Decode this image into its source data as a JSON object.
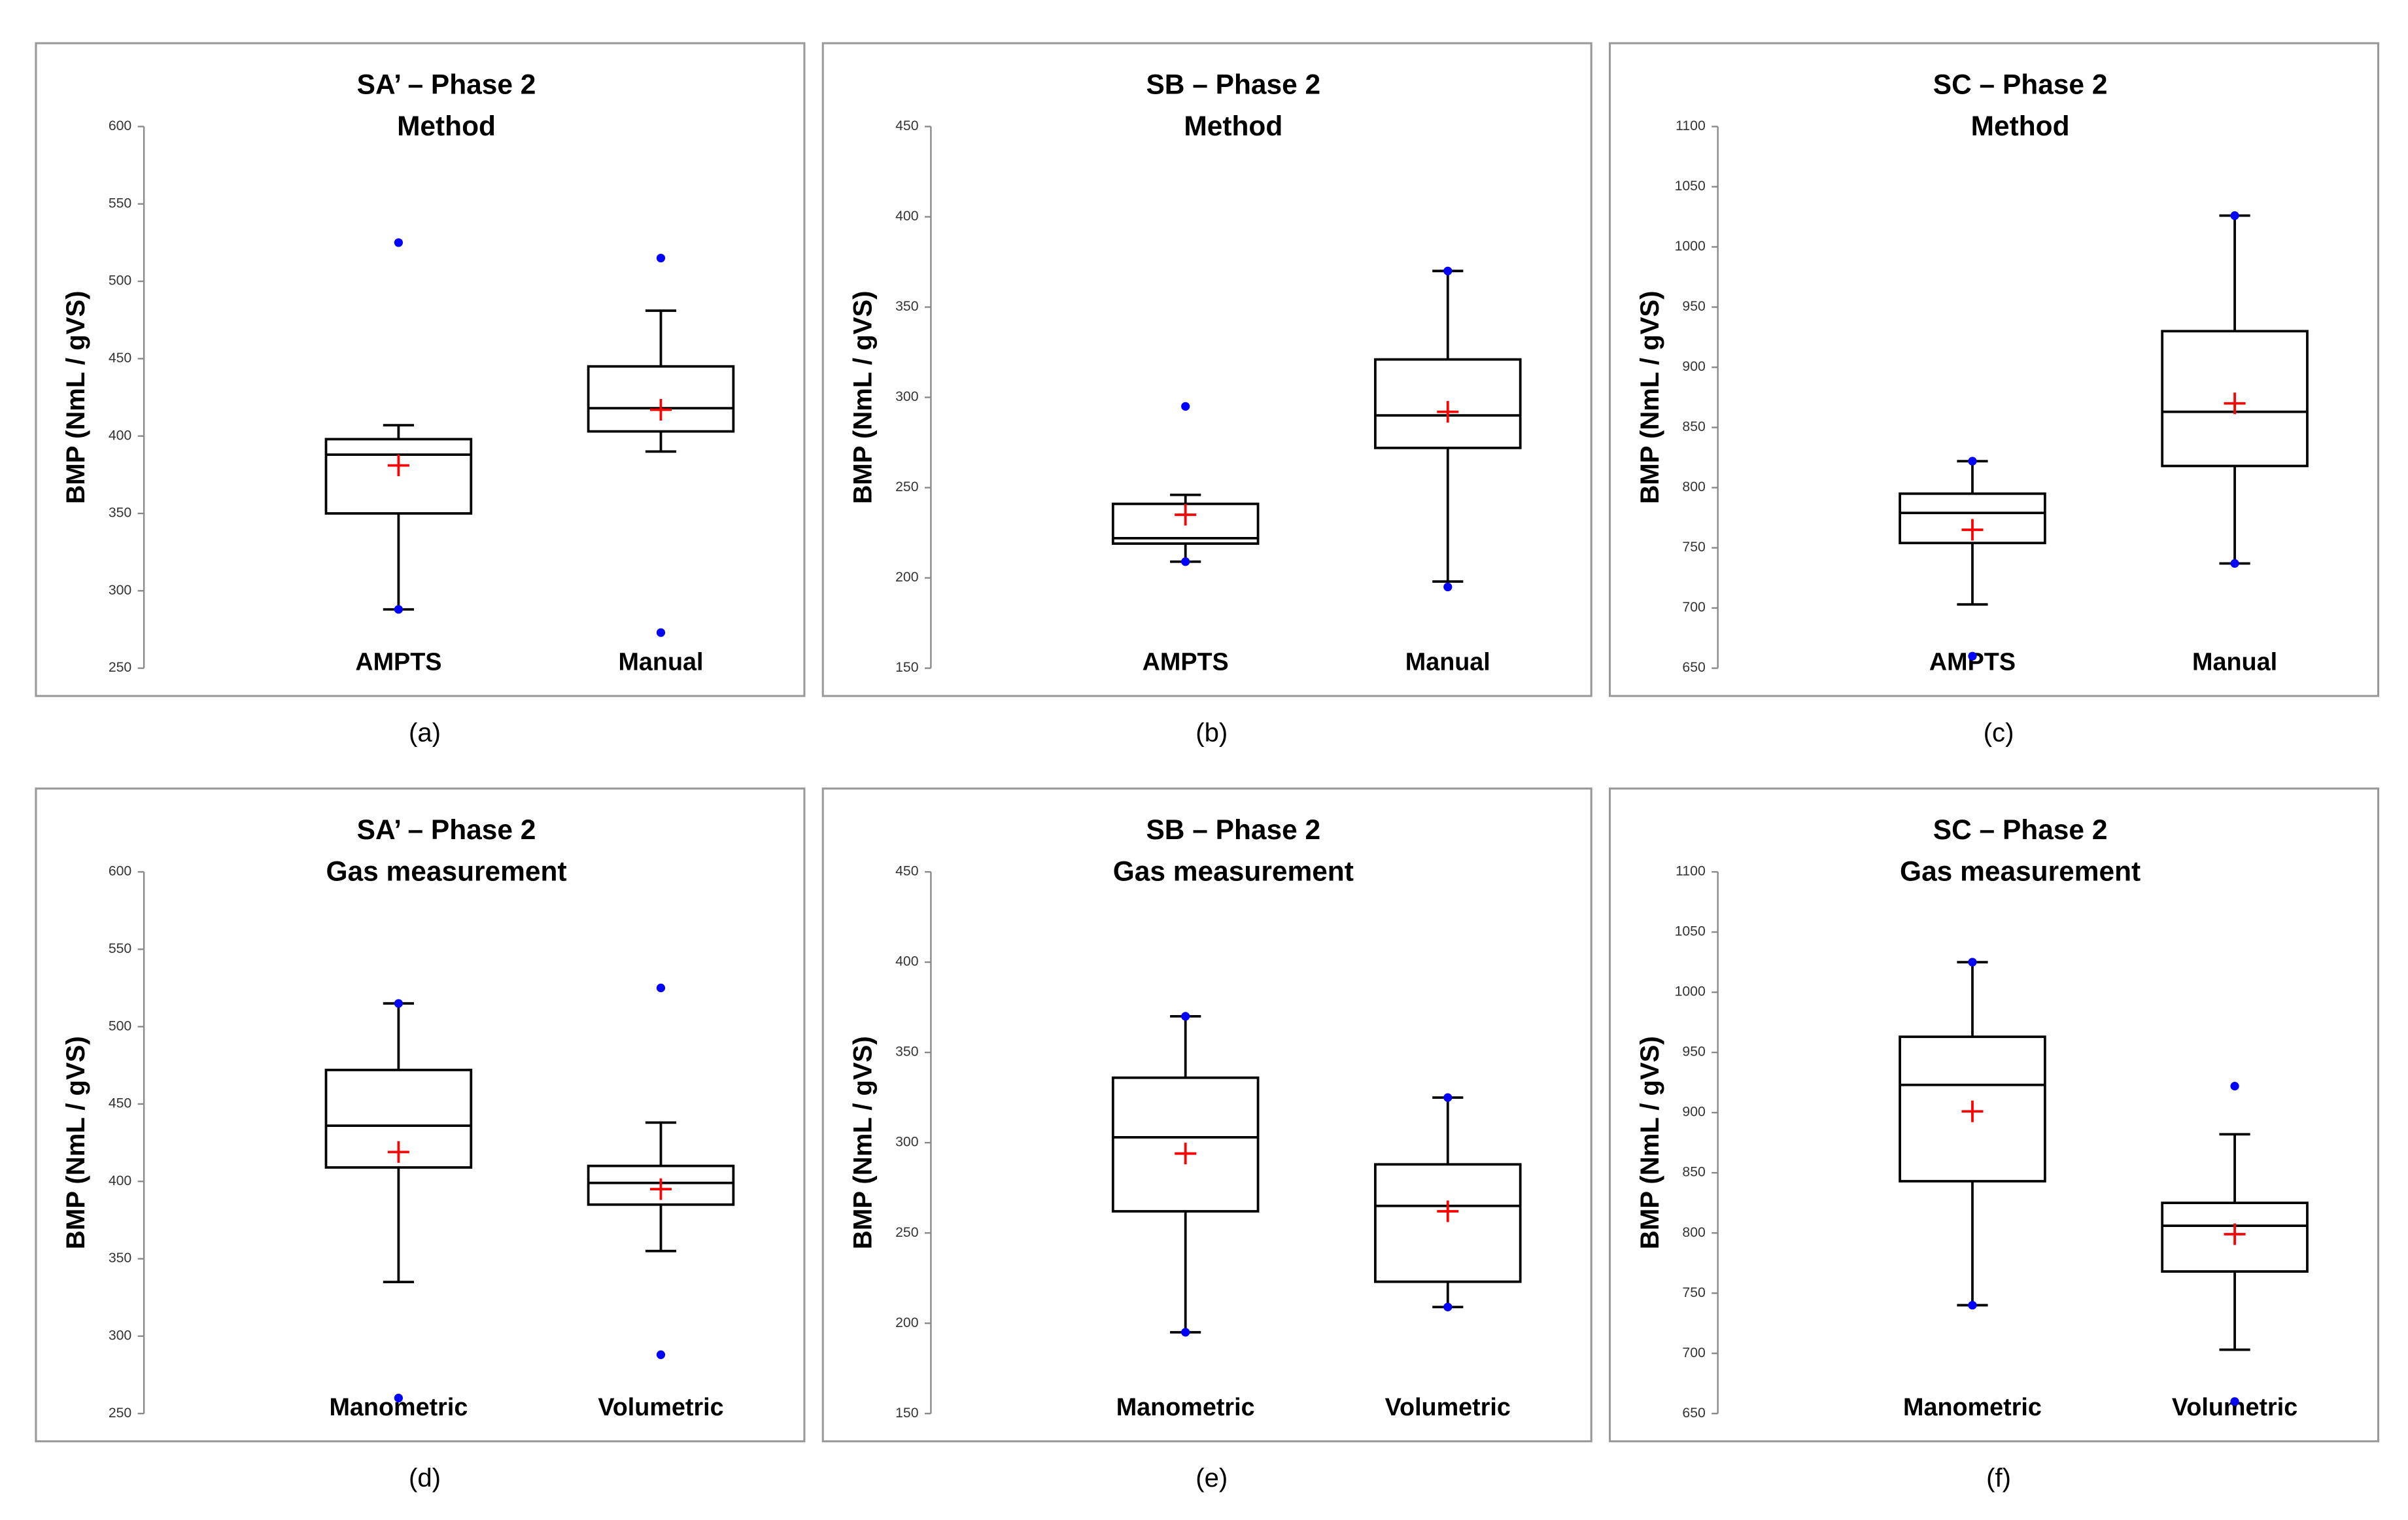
{
  "chart_data": [
    {
      "type": "box",
      "title": "SA’ – Phase 2",
      "subtitle": "Method",
      "ylabel": "BMP (NmL / gVS)",
      "caption": "(a)",
      "categories": [
        "AMPTS",
        "Manual"
      ],
      "boxes": [
        {
          "min": 288,
          "q1": 350,
          "median": 388,
          "q3": 398,
          "max": 407,
          "mean": 381,
          "outliers": [
            525,
            288
          ]
        },
        {
          "min": 390,
          "q1": 403,
          "median": 418,
          "q3": 445,
          "max": 481,
          "mean": 417,
          "outliers": [
            515,
            273
          ]
        }
      ],
      "ylim": [
        250,
        600
      ],
      "yticks": [
        250,
        300,
        350,
        400,
        450,
        500,
        550,
        600
      ],
      "box_color": "#000000",
      "outlier_color": "#0000ff",
      "mean_color": "#ff0000"
    },
    {
      "type": "box",
      "title": "SB – Phase 2",
      "subtitle": "Method",
      "ylabel": "BMP (NmL / gVS)",
      "caption": "(b)",
      "categories": [
        "AMPTS",
        "Manual"
      ],
      "boxes": [
        {
          "min": 209,
          "q1": 219,
          "median": 222,
          "q3": 241,
          "max": 246,
          "mean": 235,
          "outliers": [
            295,
            209
          ]
        },
        {
          "min": 198,
          "q1": 272,
          "median": 290,
          "q3": 321,
          "max": 370,
          "mean": 292,
          "outliers": [
            370,
            195
          ]
        }
      ],
      "ylim": [
        150,
        450
      ],
      "yticks": [
        150,
        200,
        250,
        300,
        350,
        400,
        450
      ],
      "box_color": "#000000",
      "outlier_color": "#0000ff",
      "mean_color": "#ff0000"
    },
    {
      "type": "box",
      "title": "SC – Phase 2",
      "subtitle": "Method",
      "ylabel": "BMP (NmL / gVS)",
      "caption": "(c)",
      "categories": [
        "AMPTS",
        "Manual"
      ],
      "boxes": [
        {
          "min": 703,
          "q1": 754,
          "median": 779,
          "q3": 795,
          "max": 822,
          "mean": 765,
          "outliers": [
            822,
            660
          ]
        },
        {
          "min": 737,
          "q1": 818,
          "median": 863,
          "q3": 930,
          "max": 1026,
          "mean": 870,
          "outliers": [
            1026,
            737
          ]
        }
      ],
      "ylim": [
        650,
        1100
      ],
      "yticks": [
        650,
        700,
        750,
        800,
        850,
        900,
        950,
        1000,
        1050,
        1100
      ],
      "box_color": "#000000",
      "outlier_color": "#0000ff",
      "mean_color": "#ff0000"
    },
    {
      "type": "box",
      "title": "SA’ – Phase 2",
      "subtitle": "Gas measurement",
      "ylabel": "BMP (NmL / gVS)",
      "caption": "(d)",
      "categories": [
        "Manometric",
        "Volumetric"
      ],
      "boxes": [
        {
          "min": 335,
          "q1": 409,
          "median": 436,
          "q3": 472,
          "max": 515,
          "mean": 419,
          "outliers": [
            515,
            260
          ]
        },
        {
          "min": 355,
          "q1": 385,
          "median": 399,
          "q3": 410,
          "max": 438,
          "mean": 395,
          "outliers": [
            525,
            288
          ]
        }
      ],
      "ylim": [
        250,
        600
      ],
      "yticks": [
        250,
        300,
        350,
        400,
        450,
        500,
        550,
        600
      ],
      "box_color": "#000000",
      "outlier_color": "#0000ff",
      "mean_color": "#ff0000"
    },
    {
      "type": "box",
      "title": "SB – Phase 2",
      "subtitle": "Gas measurement",
      "ylabel": "BMP (NmL / gVS)",
      "caption": "(e)",
      "categories": [
        "Manometric",
        "Volumetric"
      ],
      "boxes": [
        {
          "min": 195,
          "q1": 262,
          "median": 303,
          "q3": 336,
          "max": 370,
          "mean": 294,
          "outliers": [
            370,
            195
          ]
        },
        {
          "min": 209,
          "q1": 223,
          "median": 265,
          "q3": 288,
          "max": 325,
          "mean": 262,
          "outliers": [
            325,
            209
          ]
        }
      ],
      "ylim": [
        150,
        450
      ],
      "yticks": [
        150,
        200,
        250,
        300,
        350,
        400,
        450
      ],
      "box_color": "#000000",
      "outlier_color": "#0000ff",
      "mean_color": "#ff0000"
    },
    {
      "type": "box",
      "title": "SC – Phase 2",
      "subtitle": "Gas measurement",
      "ylabel": "BMP (NmL / gVS)",
      "caption": "(f)",
      "categories": [
        "Manometric",
        "Volumetric"
      ],
      "boxes": [
        {
          "min": 740,
          "q1": 843,
          "median": 923,
          "q3": 963,
          "max": 1025,
          "mean": 901,
          "outliers": [
            1025,
            740
          ]
        },
        {
          "min": 703,
          "q1": 768,
          "median": 806,
          "q3": 825,
          "max": 882,
          "mean": 799,
          "outliers": [
            922,
            660
          ]
        }
      ],
      "ylim": [
        650,
        1100
      ],
      "yticks": [
        650,
        700,
        750,
        800,
        850,
        900,
        950,
        1000,
        1050,
        1100
      ],
      "box_color": "#000000",
      "outlier_color": "#0000ff",
      "mean_color": "#ff0000"
    }
  ]
}
